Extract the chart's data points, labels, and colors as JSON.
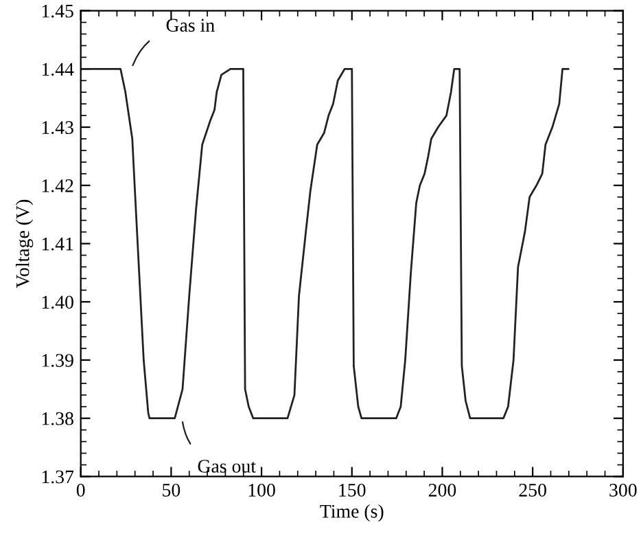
{
  "chart_data": {
    "type": "line",
    "xlabel": "Time (s)",
    "ylabel": "Voltage (V)",
    "xlim": [
      0,
      300
    ],
    "ylim": [
      1.37,
      1.45
    ],
    "xticks": [
      0,
      50,
      100,
      150,
      200,
      250,
      300
    ],
    "yticks": [
      {
        "value": 1.37,
        "label": "1.37"
      },
      {
        "value": 1.38,
        "label": "1.38"
      },
      {
        "value": 1.39,
        "label": "1.39"
      },
      {
        "value": 1.4,
        "label": "1.40"
      },
      {
        "value": 1.41,
        "label": "1.41"
      },
      {
        "value": 1.42,
        "label": "1.42"
      },
      {
        "value": 1.43,
        "label": "1.43"
      },
      {
        "value": 1.44,
        "label": "1.44"
      },
      {
        "value": 1.45,
        "label": "1.45"
      }
    ],
    "grid": false,
    "legend": false,
    "marker": "none",
    "line_style": "solid",
    "series": [
      {
        "color": "#222222",
        "x": [
          0,
          22,
          24.7,
          28.5,
          29.8,
          32.3,
          34.8,
          37.3,
          38,
          52,
          56.3,
          60,
          63.8,
          67.2,
          71.5,
          74,
          75.2,
          77.8,
          82.8,
          89.9,
          90.9,
          92.9,
          95.4,
          114.4,
          118.2,
          120.7,
          124.5,
          127,
          130.8,
          134.6,
          137.1,
          139.6,
          142.2,
          146,
          150,
          151,
          153.5,
          155.3,
          174.5,
          177,
          179.5,
          182.6,
          185.6,
          187.6,
          190.2,
          192.2,
          193.9,
          197.7,
          202.3,
          204.8,
          206.6,
          209.6,
          210.8,
          212.9,
          215.4,
          233.8,
          236.4,
          239.4,
          241.9,
          245.7,
          248.3,
          252.1,
          255.3,
          257.1,
          260.9,
          264.7,
          266.5,
          269.7
        ],
        "values": [
          1.44,
          1.44,
          1.436,
          1.428,
          1.42,
          1.405,
          1.39,
          1.381,
          1.38,
          1.38,
          1.385,
          1.401,
          1.416,
          1.427,
          1.431,
          1.433,
          1.436,
          1.439,
          1.44,
          1.44,
          1.385,
          1.382,
          1.38,
          1.38,
          1.384,
          1.401,
          1.412,
          1.419,
          1.427,
          1.429,
          1.432,
          1.434,
          1.438,
          1.44,
          1.44,
          1.389,
          1.382,
          1.38,
          1.38,
          1.382,
          1.39,
          1.405,
          1.417,
          1.42,
          1.422,
          1.425,
          1.428,
          1.43,
          1.432,
          1.436,
          1.44,
          1.44,
          1.389,
          1.383,
          1.38,
          1.38,
          1.382,
          1.39,
          1.406,
          1.412,
          1.418,
          1.42,
          1.422,
          1.427,
          1.43,
          1.434,
          1.44,
          1.44
        ]
      }
    ],
    "annotations": [
      {
        "text": "Gas in",
        "x": 24,
        "y": 1.44
      },
      {
        "text": "Gas out",
        "x": 52,
        "y": 1.38
      }
    ]
  }
}
